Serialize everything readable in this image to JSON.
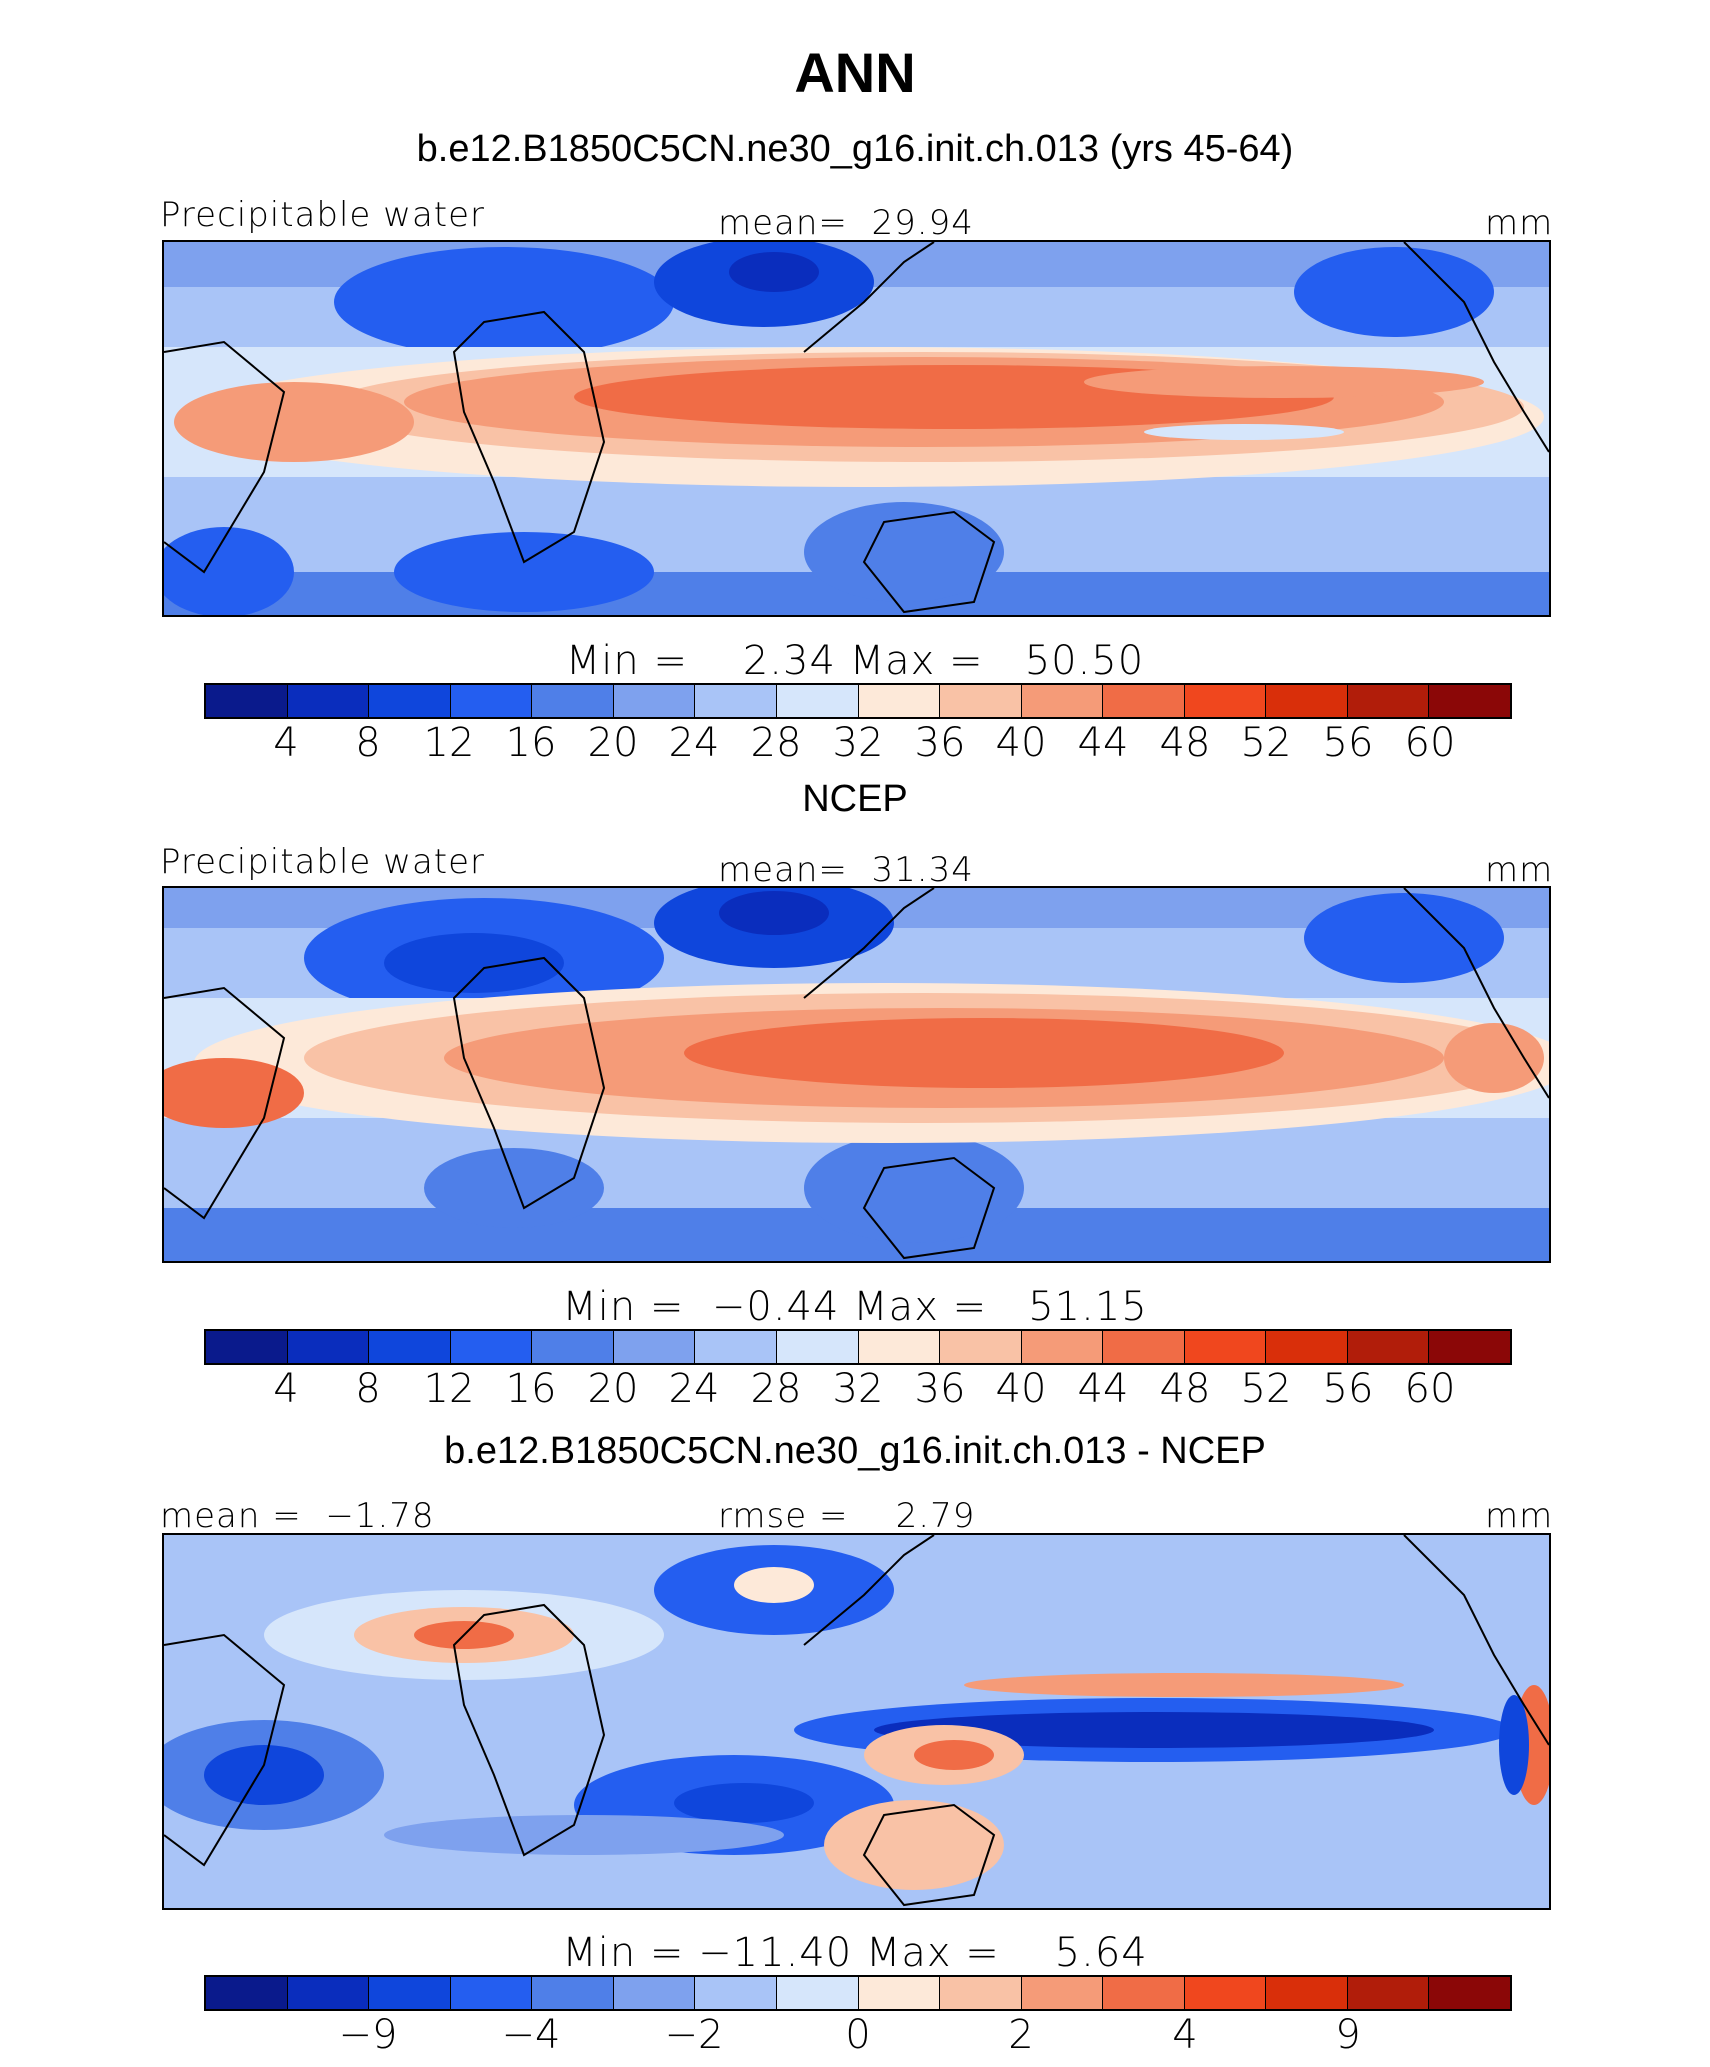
{
  "figure": {
    "title": "ANN"
  },
  "palette": [
    "#0a1a8c",
    "#0a2dbd",
    "#0f46dc",
    "#245ef0",
    "#4f7fe8",
    "#7ea1ee",
    "#a9c4f7",
    "#d6e6fb",
    "#fde9d9",
    "#f9c2a6",
    "#f59b78",
    "#f06c46",
    "#f0471e",
    "#d92f0a",
    "#b11d0a",
    "#8b0707"
  ],
  "panels": [
    {
      "title": "b.e12.B1850C5CN.ne30_g16.init.ch.013 (yrs 45-64)",
      "left_label": "Precipitable water",
      "center_label": "mean=  29.94",
      "right_label": "mm",
      "min_max": "Min =    2.34 Max =   50.50",
      "ticks": [
        "4",
        "8",
        "12",
        "16",
        "20",
        "24",
        "28",
        "32",
        "36",
        "40",
        "44",
        "48",
        "52",
        "56",
        "60"
      ]
    },
    {
      "title": "NCEP",
      "left_label": "Precipitable water",
      "center_label": "mean=  31.34",
      "right_label": "mm",
      "min_max": "Min =  −0.44 Max =   51.15",
      "ticks": [
        "4",
        "8",
        "12",
        "16",
        "20",
        "24",
        "28",
        "32",
        "36",
        "40",
        "44",
        "48",
        "52",
        "56",
        "60"
      ]
    },
    {
      "title": "b.e12.B1850C5CN.ne30_g16.init.ch.013 - NCEP",
      "left_label": "mean =  −1.78",
      "center_label": "rmse =    2.79",
      "right_label": "mm",
      "min_max": "Min = −11.40 Max =    5.64",
      "ticks": [
        "−9",
        "−4",
        "−2",
        "0",
        "2",
        "4",
        "9"
      ]
    }
  ]
}
